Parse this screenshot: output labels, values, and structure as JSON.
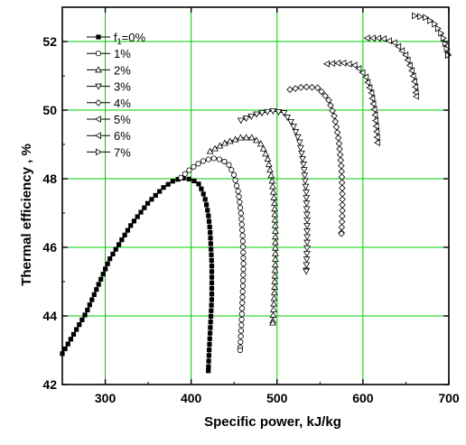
{
  "chart_data": {
    "type": "line",
    "title": "",
    "xlabel": "Specific power, kJ/kg",
    "ylabel": "Thermal efficiency , %",
    "xlim": [
      250,
      700
    ],
    "ylim": [
      42,
      53
    ],
    "x_ticks": [
      300,
      400,
      500,
      600,
      700
    ],
    "y_ticks": [
      42,
      44,
      46,
      48,
      50,
      52
    ],
    "grid": true,
    "grid_color": "#00cc00",
    "legend_position": "top-left",
    "series": [
      {
        "name": "f1=0%",
        "name_parts": [
          "f",
          "1",
          "=0%"
        ],
        "marker": "filled-square",
        "points": [
          [
            250,
            42.9
          ],
          [
            278,
            44.1
          ],
          [
            305,
            45.65
          ],
          [
            330,
            46.65
          ],
          [
            350,
            47.3
          ],
          [
            368,
            47.75
          ],
          [
            380,
            47.95
          ],
          [
            390,
            48.02
          ],
          [
            400,
            47.98
          ],
          [
            408,
            47.88
          ],
          [
            413,
            47.65
          ],
          [
            417,
            47.35
          ],
          [
            420,
            46.95
          ],
          [
            422,
            46.5
          ],
          [
            423,
            46.0
          ],
          [
            424,
            45.5
          ],
          [
            424,
            45.0
          ],
          [
            424,
            44.5
          ],
          [
            423,
            44.0
          ],
          [
            422,
            43.5
          ],
          [
            421,
            43.0
          ],
          [
            420,
            42.4
          ]
        ]
      },
      {
        "name": "1%",
        "marker": "open-circle",
        "points": [
          [
            388,
            48.03
          ],
          [
            400,
            48.3
          ],
          [
            412,
            48.5
          ],
          [
            425,
            48.6
          ],
          [
            436,
            48.55
          ],
          [
            444,
            48.4
          ],
          [
            450,
            48.1
          ],
          [
            455,
            47.6
          ],
          [
            458,
            47.0
          ],
          [
            460,
            46.3
          ],
          [
            461,
            45.5
          ],
          [
            460,
            44.7
          ],
          [
            459,
            44.0
          ],
          [
            457,
            43.0
          ]
        ]
      },
      {
        "name": "2%",
        "marker": "open-triangle-up",
        "points": [
          [
            422,
            48.8
          ],
          [
            440,
            49.05
          ],
          [
            458,
            49.2
          ],
          [
            472,
            49.2
          ],
          [
            482,
            49.0
          ],
          [
            489,
            48.6
          ],
          [
            494,
            48.0
          ],
          [
            497,
            47.3
          ],
          [
            498,
            46.5
          ],
          [
            498,
            45.6
          ],
          [
            497,
            44.7
          ],
          [
            495,
            43.8
          ]
        ]
      },
      {
        "name": "3%",
        "marker": "open-triangle-down",
        "points": [
          [
            458,
            49.7
          ],
          [
            476,
            49.88
          ],
          [
            494,
            49.98
          ],
          [
            508,
            49.92
          ],
          [
            518,
            49.6
          ],
          [
            526,
            49.1
          ],
          [
            531,
            48.4
          ],
          [
            534,
            47.6
          ],
          [
            535,
            46.8
          ],
          [
            535,
            46.0
          ],
          [
            534,
            45.3
          ]
        ]
      },
      {
        "name": "4%",
        "marker": "open-diamond",
        "points": [
          [
            515,
            50.6
          ],
          [
            532,
            50.68
          ],
          [
            548,
            50.65
          ],
          [
            560,
            50.3
          ],
          [
            567,
            49.8
          ],
          [
            572,
            49.1
          ],
          [
            575,
            48.3
          ],
          [
            576,
            47.6
          ],
          [
            576,
            47.0
          ],
          [
            575,
            46.4
          ]
        ]
      },
      {
        "name": "5%",
        "marker": "open-triangle-left",
        "points": [
          [
            558,
            51.35
          ],
          [
            576,
            51.38
          ],
          [
            592,
            51.3
          ],
          [
            603,
            51.0
          ],
          [
            610,
            50.5
          ],
          [
            614,
            49.9
          ],
          [
            616,
            49.4
          ],
          [
            617,
            49.05
          ]
        ]
      },
      {
        "name": "6%",
        "marker": "open-triangle-left",
        "points": [
          [
            605,
            52.1
          ],
          [
            622,
            52.1
          ],
          [
            638,
            51.95
          ],
          [
            650,
            51.6
          ],
          [
            657,
            51.15
          ],
          [
            661,
            50.75
          ],
          [
            662,
            50.4
          ]
        ]
      },
      {
        "name": "7%",
        "marker": "open-triangle-right",
        "points": [
          [
            660,
            52.75
          ],
          [
            673,
            52.7
          ],
          [
            684,
            52.5
          ],
          [
            692,
            52.2
          ],
          [
            697,
            51.85
          ],
          [
            699,
            51.6
          ]
        ]
      }
    ]
  }
}
